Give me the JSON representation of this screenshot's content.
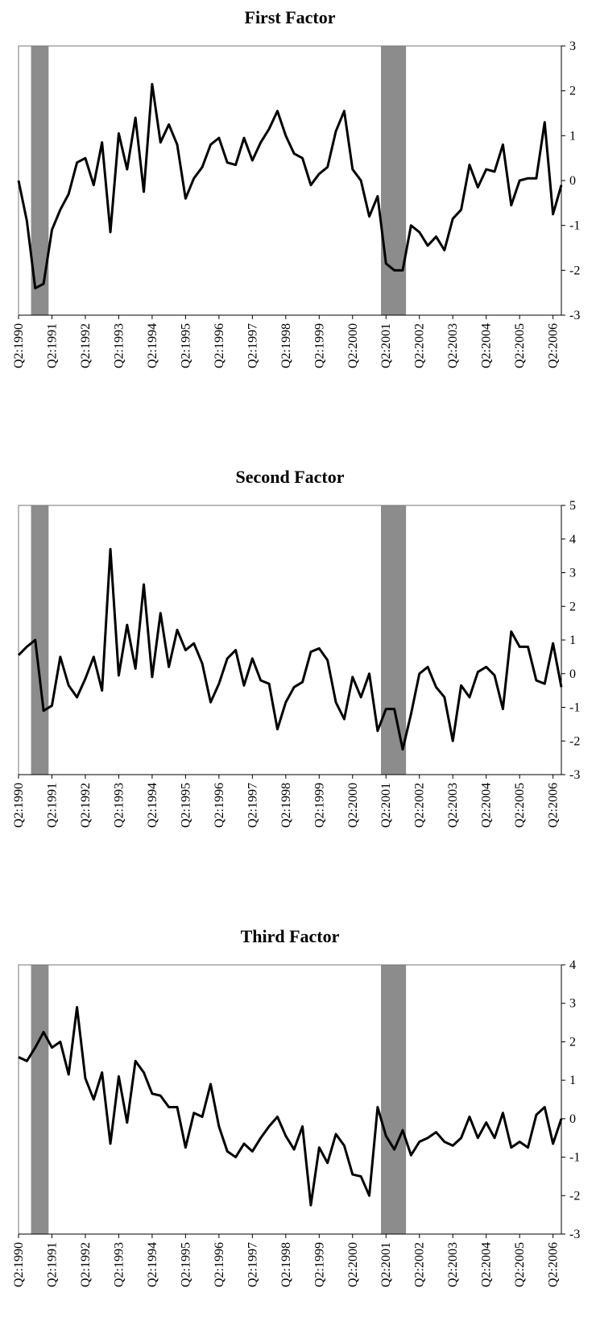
{
  "chart_data": [
    {
      "type": "line",
      "title": "First Factor",
      "color": "#000000",
      "categories": [
        "Q2:1990",
        null,
        null,
        null,
        "Q2:1991",
        null,
        null,
        null,
        "Q2:1992",
        null,
        null,
        null,
        "Q2:1993",
        null,
        null,
        null,
        "Q2:1994",
        null,
        null,
        null,
        "Q2:1995",
        null,
        null,
        null,
        "Q2:1996",
        null,
        null,
        null,
        "Q2:1997",
        null,
        null,
        null,
        "Q2:1998",
        null,
        null,
        null,
        "Q2:1999",
        null,
        null,
        null,
        "Q2:2000",
        null,
        null,
        null,
        "Q2:2001",
        null,
        null,
        null,
        "Q2:2002",
        null,
        null,
        null,
        "Q2:2003",
        null,
        null,
        null,
        "Q2:2004",
        null,
        null,
        null,
        "Q2:2005",
        null,
        null,
        null,
        "Q2:2006",
        null
      ],
      "values": [
        0,
        -0.9,
        -2.4,
        -2.3,
        -1.1,
        -0.65,
        -0.3,
        0.4,
        0.5,
        -0.1,
        0.85,
        -1.15,
        1.05,
        0.25,
        1.4,
        -0.25,
        2.15,
        0.85,
        1.25,
        0.8,
        -0.4,
        0.05,
        0.3,
        0.8,
        0.95,
        0.4,
        0.35,
        0.95,
        0.45,
        0.85,
        1.15,
        1.55,
        1.0,
        0.6,
        0.5,
        -0.1,
        0.15,
        0.3,
        1.1,
        1.55,
        0.25,
        0.0,
        -0.8,
        -0.35,
        -1.85,
        -2.0,
        -2.0,
        -1.0,
        -1.15,
        -1.45,
        -1.25,
        -1.55,
        -0.85,
        -0.65,
        0.35,
        -0.15,
        0.25,
        0.2,
        0.8,
        -0.55,
        0.0,
        0.05,
        0.05,
        1.3,
        -0.75,
        -0.1
      ],
      "ylim": [
        -3,
        3
      ],
      "yticks": [
        -3,
        -2,
        -1,
        0,
        1,
        2,
        3
      ]
    },
    {
      "type": "line",
      "title": "Second Factor",
      "color": "#000000",
      "categories": [
        "Q2:1990",
        null,
        null,
        null,
        "Q2:1991",
        null,
        null,
        null,
        "Q2:1992",
        null,
        null,
        null,
        "Q2:1993",
        null,
        null,
        null,
        "Q2:1994",
        null,
        null,
        null,
        "Q2:1995",
        null,
        null,
        null,
        "Q2:1996",
        null,
        null,
        null,
        "Q2:1997",
        null,
        null,
        null,
        "Q2:1998",
        null,
        null,
        null,
        "Q2:1999",
        null,
        null,
        null,
        "Q2:2000",
        null,
        null,
        null,
        "Q2:2001",
        null,
        null,
        null,
        "Q2:2002",
        null,
        null,
        null,
        "Q2:2003",
        null,
        null,
        null,
        "Q2:2004",
        null,
        null,
        null,
        "Q2:2005",
        null,
        null,
        null,
        "Q2:2006",
        null
      ],
      "values": [
        0.55,
        0.8,
        1.0,
        -1.1,
        -0.95,
        0.5,
        -0.35,
        -0.7,
        -0.15,
        0.5,
        -0.5,
        3.7,
        -0.05,
        1.45,
        0.15,
        2.65,
        -0.1,
        1.8,
        0.2,
        1.3,
        0.7,
        0.9,
        0.3,
        -0.85,
        -0.3,
        0.45,
        0.7,
        -0.35,
        0.45,
        -0.2,
        -0.3,
        -1.65,
        -0.85,
        -0.4,
        -0.25,
        0.65,
        0.75,
        0.4,
        -0.85,
        -1.35,
        -0.1,
        -0.7,
        0.0,
        -1.7,
        -1.05,
        -1.05,
        -2.25,
        -1.2,
        0.0,
        0.2,
        -0.4,
        -0.7,
        -2.0,
        -0.35,
        -0.7,
        0.05,
        0.2,
        -0.05,
        -1.05,
        1.25,
        0.8,
        0.8,
        -0.2,
        -0.3,
        0.9,
        -0.4
      ],
      "ylim": [
        -3,
        5
      ],
      "yticks": [
        -3,
        -2,
        -1,
        0,
        1,
        2,
        3,
        4,
        5
      ]
    },
    {
      "type": "line",
      "title": "Third Factor",
      "color": "#000000",
      "categories": [
        "Q2:1990",
        null,
        null,
        null,
        "Q2:1991",
        null,
        null,
        null,
        "Q2:1992",
        null,
        null,
        null,
        "Q2:1993",
        null,
        null,
        null,
        "Q2:1994",
        null,
        null,
        null,
        "Q2:1995",
        null,
        null,
        null,
        "Q2:1996",
        null,
        null,
        null,
        "Q2:1997",
        null,
        null,
        null,
        "Q2:1998",
        null,
        null,
        null,
        "Q2:1999",
        null,
        null,
        null,
        "Q2:2000",
        null,
        null,
        null,
        "Q2:2001",
        null,
        null,
        null,
        "Q2:2002",
        null,
        null,
        null,
        "Q2:2003",
        null,
        null,
        null,
        "Q2:2004",
        null,
        null,
        null,
        "Q2:2005",
        null,
        null,
        null,
        "Q2:2006",
        null
      ],
      "values": [
        1.6,
        1.5,
        1.85,
        2.25,
        1.85,
        2.0,
        1.15,
        2.9,
        1.05,
        0.5,
        1.2,
        -0.65,
        1.1,
        -0.1,
        1.5,
        1.2,
        0.65,
        0.6,
        0.3,
        0.3,
        -0.75,
        0.15,
        0.05,
        0.9,
        -0.2,
        -0.85,
        -1.0,
        -0.65,
        -0.85,
        -0.5,
        -0.2,
        0.05,
        -0.45,
        -0.8,
        -0.2,
        -2.25,
        -0.75,
        -1.15,
        -0.4,
        -0.7,
        -1.45,
        -1.5,
        -2.0,
        0.3,
        -0.45,
        -0.8,
        -0.3,
        -0.95,
        -0.6,
        -0.5,
        -0.35,
        -0.6,
        -0.7,
        -0.5,
        0.05,
        -0.5,
        -0.1,
        -0.5,
        0.15,
        -0.75,
        -0.6,
        -0.75,
        0.1,
        0.3,
        -0.65,
        0.0
      ],
      "ylim": [
        -3,
        4
      ],
      "yticks": [
        -3,
        -2,
        -1,
        0,
        1,
        2,
        3,
        4
      ]
    }
  ]
}
